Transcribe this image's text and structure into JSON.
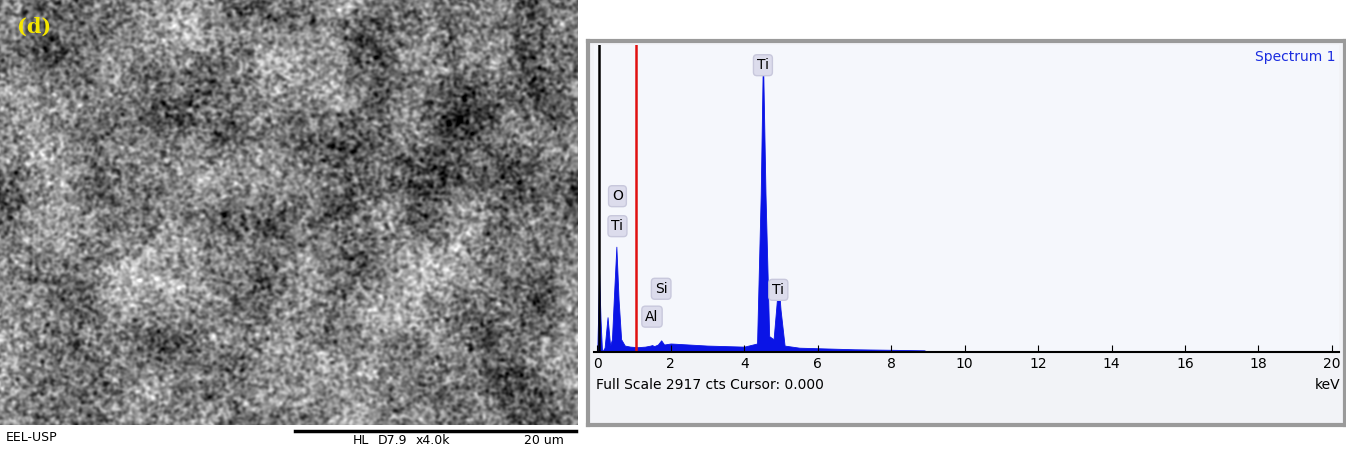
{
  "sem_image": {
    "panel_label": "(d)",
    "footer": {
      "left": "EEL-USP",
      "detector": "HL",
      "working_distance": "D7.9",
      "magnification": "x4.0k",
      "scale_bar": "20 um"
    }
  },
  "chart_data": {
    "type": "area",
    "title": "Spectrum 1",
    "xlabel": "keV",
    "footer": "Full Scale 2917 cts Cursor: 0.000",
    "x": [
      0.0,
      0.02,
      0.05,
      0.09,
      0.13,
      0.2,
      0.28,
      0.35,
      0.4,
      0.45,
      0.52,
      0.58,
      0.65,
      0.75,
      0.9,
      1.1,
      1.3,
      1.45,
      1.49,
      1.55,
      1.65,
      1.74,
      1.82,
      2.0,
      2.5,
      3.0,
      3.5,
      4.0,
      4.35,
      4.45,
      4.51,
      4.58,
      4.68,
      4.8,
      4.88,
      4.93,
      4.99,
      5.1,
      5.5,
      6.0,
      7.0,
      8.0,
      8.9,
      9.0,
      20.0
    ],
    "values": [
      0,
      300,
      760,
      300,
      0,
      40,
      330,
      60,
      120,
      500,
      1000,
      500,
      120,
      60,
      50,
      45,
      50,
      60,
      65,
      55,
      70,
      110,
      70,
      80,
      70,
      60,
      55,
      50,
      80,
      1500,
      2830,
      1500,
      150,
      120,
      450,
      670,
      400,
      60,
      40,
      35,
      25,
      20,
      15,
      0,
      0
    ],
    "color": "#0a14e6",
    "xlim": [
      -0.1,
      20.2
    ],
    "xticks": [
      0,
      2,
      4,
      6,
      8,
      10,
      12,
      14,
      16,
      18,
      20
    ],
    "ylim": [
      0,
      2917
    ],
    "tick_labels": "x",
    "markers": [
      {
        "x": 0.05,
        "color": "#000000"
      },
      {
        "x": 1.05,
        "color": "#e01010"
      }
    ],
    "annotations": [
      {
        "text": "Ti",
        "x": 4.51,
        "y": 2725
      },
      {
        "text": "O",
        "x": 0.55,
        "y": 1480
      },
      {
        "text": "Ti",
        "x": 0.55,
        "y": 1195
      },
      {
        "text": "Si",
        "x": 1.74,
        "y": 600
      },
      {
        "text": "Al",
        "x": 1.49,
        "y": 335
      },
      {
        "text": "Ti",
        "x": 4.93,
        "y": 590
      }
    ]
  }
}
